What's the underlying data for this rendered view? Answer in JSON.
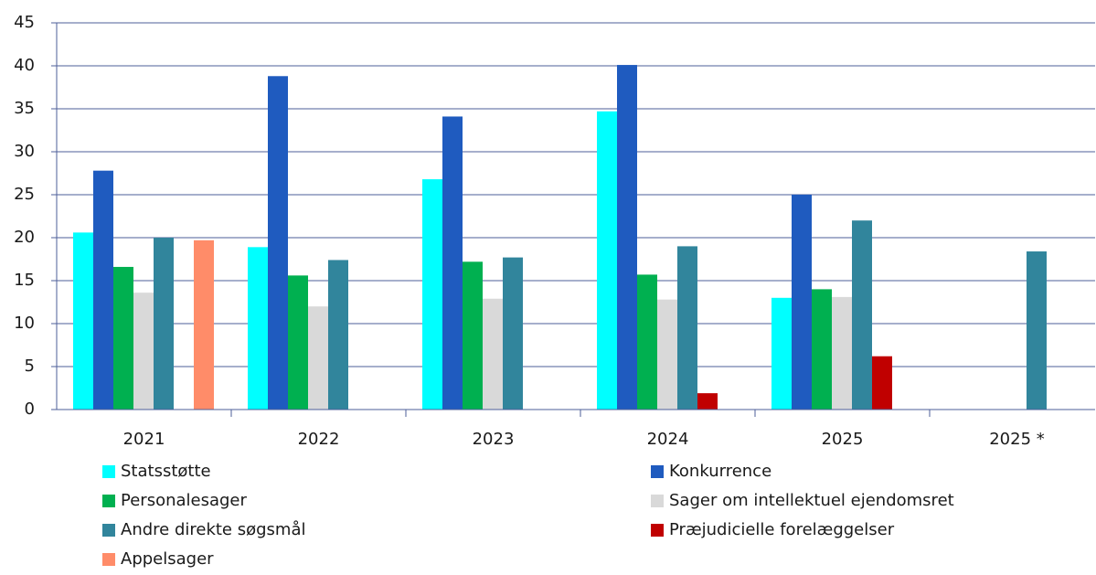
{
  "chart_data": {
    "type": "bar",
    "categories": [
      "2021",
      "2022",
      "2023",
      "2024",
      "2025",
      "2025 *"
    ],
    "series": [
      {
        "name": "Statsstøtte",
        "color": "#00ffff",
        "values": [
          20.6,
          18.9,
          26.8,
          34.7,
          13,
          null
        ]
      },
      {
        "name": "Konkurrence",
        "color": "#1f5bbf",
        "values": [
          27.8,
          38.8,
          34.1,
          40.1,
          25,
          null
        ]
      },
      {
        "name": "Personalesager",
        "color": "#00b050",
        "values": [
          16.6,
          15.6,
          17.2,
          15.7,
          14,
          null
        ]
      },
      {
        "name": "Sager om intellektuel ejendomsret",
        "color": "#d9d9d9",
        "values": [
          13.6,
          12,
          12.9,
          12.8,
          13.1,
          null
        ]
      },
      {
        "name": "Andre direkte søgsmål",
        "color": "#31859c",
        "values": [
          20,
          17.4,
          17.7,
          19,
          22,
          18.4
        ]
      },
      {
        "name": "Præjudicielle forelæggelser",
        "color": "#c00000",
        "values": [
          null,
          null,
          null,
          1.9,
          6.2,
          null
        ]
      },
      {
        "name": "Appelsager",
        "color": "#ff8c69",
        "values": [
          19.7,
          null,
          null,
          null,
          null,
          null
        ]
      }
    ],
    "ylim": [
      0,
      45
    ],
    "yticks": [
      0,
      5,
      10,
      15,
      20,
      25,
      30,
      35,
      40,
      45
    ],
    "grid": true,
    "legend": "bottom"
  }
}
